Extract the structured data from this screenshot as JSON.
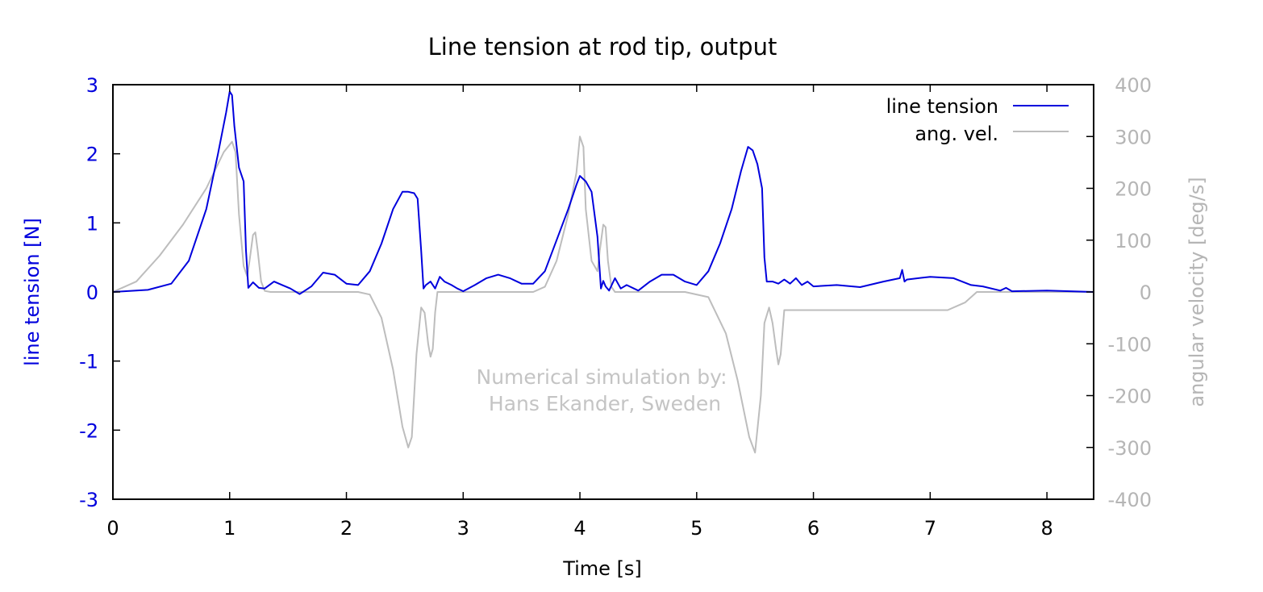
{
  "chart_data": {
    "type": "line",
    "title": "Line tension at rod tip, output",
    "xlabel": "Time [s]",
    "ylabel": "line tension [N]",
    "y2label": "angular velocity [deg/s]",
    "xlim": [
      0,
      8.4
    ],
    "ylim": [
      -3,
      3
    ],
    "y2lim": [
      -400,
      400
    ],
    "x_ticks": [
      "0",
      "1",
      "2",
      "3",
      "4",
      "5",
      "6",
      "7",
      "8"
    ],
    "y_ticks": [
      "3",
      "2",
      "1",
      "0",
      "-1",
      "-2",
      "-3"
    ],
    "y2_ticks": [
      "400",
      "300",
      "200",
      "100",
      "0",
      "-100",
      "-200",
      "-300",
      "-400"
    ],
    "legend_position": "top-right",
    "grid": false,
    "annotation": [
      "Numerical simulation by:",
      "Hans Ekander, Sweden"
    ],
    "colors": {
      "tension": "#0000dd",
      "angvel": "#bdbdbd",
      "axis": "#000000",
      "right_axis_text": "#b5b5b5"
    },
    "series": [
      {
        "name": "line tension",
        "axis": "left",
        "x": [
          0,
          0.3,
          0.5,
          0.65,
          0.8,
          0.9,
          0.97,
          1.0,
          1.02,
          1.04,
          1.08,
          1.12,
          1.14,
          1.16,
          1.2,
          1.25,
          1.3,
          1.38,
          1.45,
          1.52,
          1.6,
          1.7,
          1.8,
          1.9,
          2.0,
          2.1,
          2.2,
          2.3,
          2.4,
          2.48,
          2.53,
          2.58,
          2.61,
          2.64,
          2.66,
          2.68,
          2.72,
          2.76,
          2.8,
          2.84,
          2.9,
          2.95,
          3.0,
          3.1,
          3.2,
          3.3,
          3.4,
          3.5,
          3.6,
          3.7,
          3.8,
          3.9,
          3.97,
          4.0,
          4.05,
          4.1,
          4.15,
          4.18,
          4.2,
          4.22,
          4.25,
          4.3,
          4.35,
          4.4,
          4.5,
          4.6,
          4.7,
          4.8,
          4.9,
          5.0,
          5.1,
          5.2,
          5.3,
          5.38,
          5.44,
          5.48,
          5.52,
          5.56,
          5.58,
          5.6,
          5.65,
          5.7,
          5.75,
          5.8,
          5.85,
          5.9,
          5.95,
          6.0,
          6.2,
          6.4,
          6.6,
          6.74,
          6.76,
          6.78,
          6.8,
          7.0,
          7.2,
          7.35,
          7.45,
          7.6,
          7.65,
          7.7,
          8.0,
          8.4
        ],
        "y": [
          0.0,
          0.03,
          0.12,
          0.45,
          1.2,
          2.0,
          2.6,
          2.9,
          2.85,
          2.4,
          1.8,
          1.6,
          0.6,
          0.06,
          0.14,
          0.06,
          0.05,
          0.15,
          0.1,
          0.05,
          -0.03,
          0.08,
          0.28,
          0.25,
          0.12,
          0.1,
          0.3,
          0.7,
          1.2,
          1.45,
          1.45,
          1.43,
          1.35,
          0.6,
          0.05,
          0.1,
          0.15,
          0.05,
          0.22,
          0.15,
          0.1,
          0.05,
          0.01,
          0.1,
          0.2,
          0.25,
          0.2,
          0.12,
          0.12,
          0.3,
          0.75,
          1.2,
          1.55,
          1.68,
          1.6,
          1.45,
          0.8,
          0.05,
          0.16,
          0.08,
          0.02,
          0.2,
          0.05,
          0.1,
          0.02,
          0.15,
          0.25,
          0.25,
          0.15,
          0.1,
          0.3,
          0.7,
          1.2,
          1.75,
          2.1,
          2.05,
          1.85,
          1.5,
          0.5,
          0.15,
          0.15,
          0.12,
          0.18,
          0.12,
          0.2,
          0.1,
          0.15,
          0.08,
          0.1,
          0.07,
          0.15,
          0.2,
          0.32,
          0.15,
          0.18,
          0.22,
          0.2,
          0.1,
          0.08,
          0.02,
          0.06,
          0.01,
          0.02,
          0.0
        ]
      },
      {
        "name": "ang. vel.",
        "axis": "right",
        "x": [
          0,
          0.2,
          0.4,
          0.6,
          0.8,
          0.95,
          1.02,
          1.05,
          1.08,
          1.12,
          1.15,
          1.17,
          1.2,
          1.22,
          1.24,
          1.27,
          1.3,
          1.35,
          2.1,
          2.2,
          2.3,
          2.4,
          2.48,
          2.53,
          2.56,
          2.6,
          2.64,
          2.67,
          2.7,
          2.72,
          2.74,
          2.76,
          2.78,
          2.8,
          3.6,
          3.7,
          3.8,
          3.9,
          3.97,
          4.0,
          4.03,
          4.05,
          4.1,
          4.15,
          4.17,
          4.2,
          4.22,
          4.24,
          4.27,
          4.3,
          4.35,
          4.9,
          5.1,
          5.25,
          5.35,
          5.45,
          5.5,
          5.55,
          5.58,
          5.62,
          5.65,
          5.68,
          5.7,
          5.72,
          5.75,
          6.0,
          6.5,
          7.0,
          7.15,
          7.3,
          7.4,
          8.4
        ],
        "y": [
          0,
          20,
          70,
          130,
          200,
          270,
          290,
          270,
          150,
          50,
          30,
          60,
          110,
          115,
          80,
          20,
          2,
          0,
          0,
          -5,
          -50,
          -150,
          -260,
          -300,
          -280,
          -120,
          -30,
          -40,
          -100,
          -125,
          -110,
          -40,
          0,
          0,
          0,
          10,
          60,
          150,
          230,
          300,
          280,
          160,
          60,
          40,
          80,
          130,
          125,
          60,
          10,
          0,
          0,
          0,
          -10,
          -80,
          -170,
          -280,
          -310,
          -200,
          -60,
          -30,
          -60,
          -110,
          -140,
          -120,
          -35,
          -35,
          -35,
          -35,
          -35,
          -20,
          0,
          0
        ]
      }
    ]
  }
}
